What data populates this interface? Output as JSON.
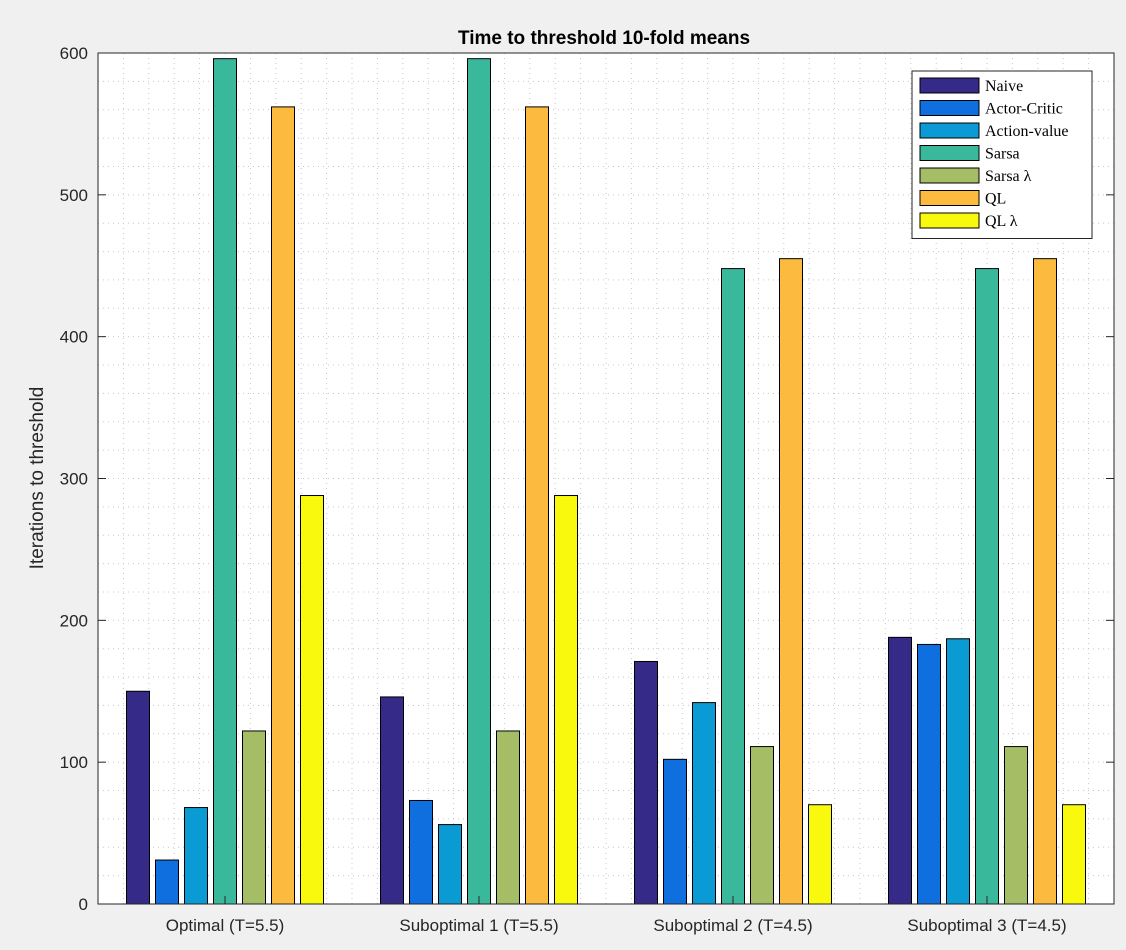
{
  "chart_data": {
    "type": "bar",
    "title": "Time to threshold 10-fold means",
    "xlabel": "",
    "ylabel": "Iterations to threshold",
    "ylim": [
      0,
      600
    ],
    "yticks": [
      0,
      100,
      200,
      300,
      400,
      500,
      600
    ],
    "grid": "minor dotted",
    "legend_position": "top-right",
    "categories": [
      "Optimal (T=5.5)",
      "Suboptimal 1 (T=5.5)",
      "Suboptimal 2 (T=4.5)",
      "Suboptimal 3 (T=4.5)"
    ],
    "series": [
      {
        "name": "Naive",
        "color": "#352a87",
        "values": [
          150,
          146,
          171,
          188
        ]
      },
      {
        "name": "Actor-Critic",
        "color": "#0f6fdf",
        "values": [
          31,
          73,
          102,
          183
        ]
      },
      {
        "name": "Action-value",
        "color": "#0a9ad4",
        "values": [
          68,
          56,
          142,
          187
        ]
      },
      {
        "name": "Sarsa",
        "color": "#39b89c",
        "values": [
          596,
          596,
          448,
          448
        ]
      },
      {
        "name": "Sarsa λ",
        "color": "#a5bd65",
        "values": [
          122,
          122,
          111,
          111
        ]
      },
      {
        "name": "QL",
        "color": "#fcbb3f",
        "values": [
          562,
          562,
          455,
          455
        ]
      },
      {
        "name": "QL λ",
        "color": "#f9f90e",
        "values": [
          288,
          288,
          70,
          70
        ]
      }
    ]
  }
}
